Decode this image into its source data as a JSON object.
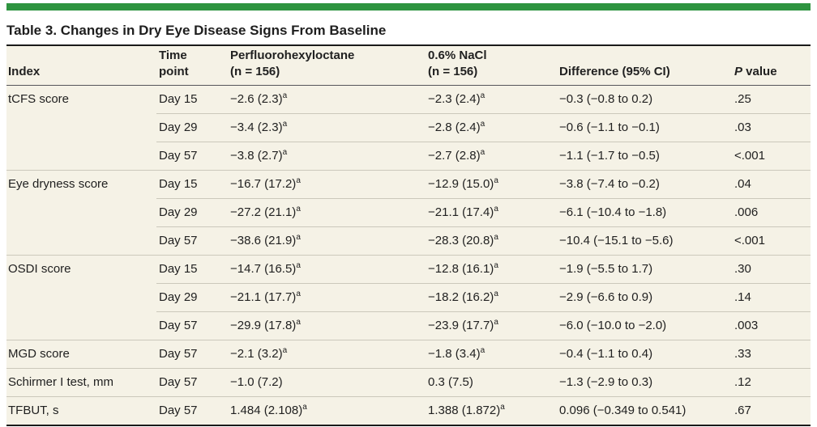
{
  "title": "Table 3. Changes in Dry Eye Disease Signs From Baseline",
  "colors": {
    "accent_bar": "#2e9440",
    "row_background": "#f5f2e6",
    "heavy_rule": "#1a1a1a",
    "header_rule": "#55555a",
    "row_divider": "#cbc8bb",
    "text": "#212121"
  },
  "footnote_marker": "a",
  "table": {
    "columns": [
      {
        "key": "index",
        "label": "Index",
        "italic_first_word": false
      },
      {
        "key": "time",
        "label": "Time\npoint",
        "italic_first_word": false
      },
      {
        "key": "drug",
        "label": "Perfluorohexyloctane\n(n = 156)",
        "italic_first_word": false
      },
      {
        "key": "nacl",
        "label": "0.6% NaCl\n(n = 156)",
        "italic_first_word": false
      },
      {
        "key": "diff",
        "label": "Difference (95% CI)",
        "italic_first_word": false
      },
      {
        "key": "p",
        "label": "P value",
        "italic_first_word": true
      }
    ],
    "groups": [
      {
        "index": "tCFS score",
        "rows": [
          {
            "time": "Day 15",
            "drug": "−2.6 (2.3)^a",
            "nacl": "−2.3 (2.4)^a",
            "diff": "−0.3 (−0.8 to 0.2)",
            "p": ".25"
          },
          {
            "time": "Day 29",
            "drug": "−3.4 (2.3)^a",
            "nacl": "−2.8 (2.4)^a",
            "diff": "−0.6 (−1.1 to −0.1)",
            "p": ".03"
          },
          {
            "time": "Day 57",
            "drug": "−3.8 (2.7)^a",
            "nacl": "−2.7 (2.8)^a",
            "diff": "−1.1 (−1.7 to −0.5)",
            "p": "<.001"
          }
        ]
      },
      {
        "index": "Eye dryness score",
        "rows": [
          {
            "time": "Day 15",
            "drug": "−16.7 (17.2)^a",
            "nacl": "−12.9 (15.0)^a",
            "diff": "−3.8 (−7.4 to −0.2)",
            "p": ".04"
          },
          {
            "time": "Day 29",
            "drug": "−27.2 (21.1)^a",
            "nacl": "−21.1 (17.4)^a",
            "diff": "−6.1 (−10.4 to −1.8)",
            "p": ".006"
          },
          {
            "time": "Day 57",
            "drug": "−38.6 (21.9)^a",
            "nacl": "−28.3 (20.8)^a",
            "diff": "−10.4 (−15.1 to −5.6)",
            "p": "<.001"
          }
        ]
      },
      {
        "index": "OSDI score",
        "rows": [
          {
            "time": "Day 15",
            "drug": "−14.7 (16.5)^a",
            "nacl": "−12.8 (16.1)^a",
            "diff": "−1.9 (−5.5 to 1.7)",
            "p": ".30"
          },
          {
            "time": "Day 29",
            "drug": "−21.1 (17.7)^a",
            "nacl": "−18.2 (16.2)^a",
            "diff": "−2.9 (−6.6 to 0.9)",
            "p": ".14"
          },
          {
            "time": "Day 57",
            "drug": "−29.9 (17.8)^a",
            "nacl": "−23.9 (17.7)^a",
            "diff": "−6.0 (−10.0 to −2.0)",
            "p": ".003"
          }
        ]
      },
      {
        "index": "MGD score",
        "rows": [
          {
            "time": "Day 57",
            "drug": "−2.1 (3.2)^a",
            "nacl": "−1.8 (3.4)^a",
            "diff": "−0.4 (−1.1 to 0.4)",
            "p": ".33"
          }
        ]
      },
      {
        "index": "Schirmer I test, mm",
        "rows": [
          {
            "time": "Day 57",
            "drug": "−1.0 (7.2)",
            "nacl": "0.3 (7.5)",
            "diff": "−1.3 (−2.9 to 0.3)",
            "p": ".12"
          }
        ]
      },
      {
        "index": "TFBUT, s",
        "rows": [
          {
            "time": "Day 57",
            "drug": "1.484 (2.108)^a",
            "nacl": "1.388 (1.872)^a",
            "diff": "0.096 (−0.349 to 0.541)",
            "p": ".67"
          }
        ]
      }
    ]
  }
}
